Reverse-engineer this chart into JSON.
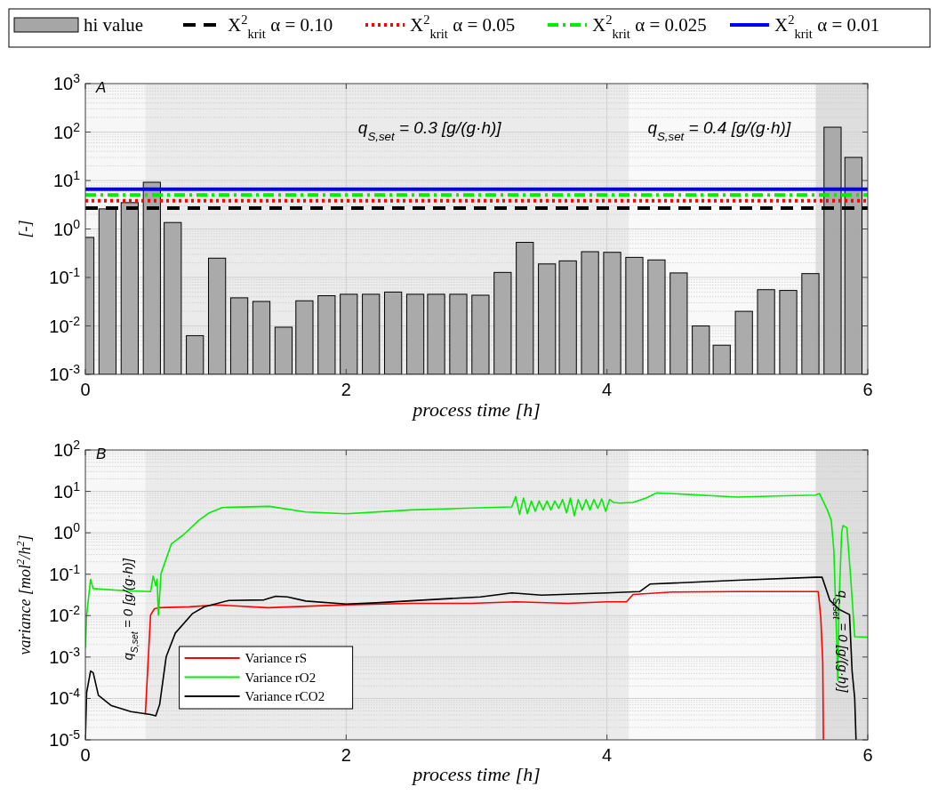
{
  "chart_data": [
    {
      "type": "bar",
      "title": "A",
      "xlabel": "process time [h]",
      "ylabel": "[-]",
      "log": "y",
      "grid": true,
      "legend": "top",
      "x": [
        0,
        0.17,
        0.34,
        0.51,
        0.67,
        0.84,
        1.01,
        1.18,
        1.35,
        1.52,
        1.68,
        1.85,
        2.02,
        2.19,
        2.36,
        2.53,
        2.69,
        2.86,
        3.03,
        3.2,
        3.37,
        3.54,
        3.7,
        3.87,
        4.04,
        4.21,
        4.38,
        4.55,
        4.72,
        4.88,
        5.05,
        5.22,
        5.39,
        5.56,
        5.73,
        5.89
      ],
      "series": [
        {
          "name": "hi value",
          "color": "#a6a6a6",
          "values": [
            0.67,
            2.6,
            3.5,
            9.2,
            1.36,
            0.0063,
            0.25,
            0.038,
            0.032,
            0.0094,
            0.033,
            0.042,
            0.045,
            0.045,
            0.05,
            0.045,
            0.045,
            0.045,
            0.043,
            0.127,
            0.53,
            0.19,
            0.22,
            0.34,
            0.33,
            0.26,
            0.23,
            0.124,
            0.01,
            0.004,
            0.02,
            0.056,
            0.054,
            0.12,
            126,
            30
          ]
        },
        {
          "type": "line",
          "name": "X$^{2}$$_{krit}$ α = 0.10",
          "color": "#000000",
          "line_style": "dashed",
          "x": [
            0,
            6
          ],
          "values": [
            2.71,
            2.71
          ]
        },
        {
          "type": "line",
          "name": "X$^{2}$$_{krit}$ α = 0.05",
          "color": "#ff0000",
          "line_style": "dotted",
          "x": [
            0,
            6
          ],
          "values": [
            3.84,
            3.84
          ]
        },
        {
          "type": "line",
          "name": "X$^{2}$$_{krit}$ α = 0.025",
          "color": "#00ee00",
          "line_style": "dashdot",
          "x": [
            0,
            6
          ],
          "values": [
            5.02,
            5.02
          ]
        },
        {
          "type": "line",
          "name": "X$^{2}$$_{krit}$ α = 0.01",
          "color": "#0000ff",
          "line_style": "solid",
          "x": [
            0,
            6
          ],
          "values": [
            6.63,
            6.63
          ]
        }
      ],
      "xlim": [
        0,
        6
      ],
      "xticks": [
        0,
        2,
        4,
        6
      ],
      "ylim": [
        0.001,
        1000
      ],
      "yticks": [
        {
          "value": 0.001,
          "label": "10$^{-3}$"
        },
        {
          "value": 0.01,
          "label": "10$^{-2}$"
        },
        {
          "value": 0.1,
          "label": "10$^{-1}$"
        },
        {
          "value": 1,
          "label": "10$^{0}$"
        },
        {
          "value": 10,
          "label": "10$^{1}$"
        },
        {
          "value": 100,
          "label": "10$^{2}$"
        },
        {
          "value": 1000,
          "label": "10$^{3}$"
        }
      ],
      "bands": [
        {
          "axis": "x",
          "from": 0,
          "to": 0.46,
          "color": "#f7f7f7"
        },
        {
          "axis": "x",
          "from": 0.46,
          "to": 4.17,
          "color": "#ebebeb"
        },
        {
          "axis": "x",
          "from": 4.17,
          "to": 5.6,
          "color": "#f9f9f9"
        },
        {
          "axis": "x",
          "from": 5.6,
          "to": 6,
          "color": "#dedede"
        }
      ],
      "annotations": [
        "q$_{S,set}$ = 0.3 [g/(g·h)]",
        "q$_{S,set}$ = 0.4 [g/(g·h)]"
      ]
    },
    {
      "type": "line",
      "title": "B",
      "xlabel": "process time [h]",
      "ylabel": "variance [mol$^{2}$/h$^{2}$]",
      "log": "y",
      "grid": true,
      "legend": "bottom left",
      "series": [
        {
          "name": "Variance rS",
          "color": "#ff0000",
          "x": [
            0.46,
            0.5,
            0.53,
            0.56,
            0.8,
            1.0,
            1.4,
            2.0,
            2.5,
            2.96,
            3.3,
            3.7,
            4.0,
            4.15,
            4.2,
            4.5,
            5.0,
            5.6,
            5.62,
            5.64,
            5.655,
            5.66
          ],
          "values": [
            4.1e-05,
            0.0103,
            0.0147,
            0.0155,
            0.0163,
            0.0182,
            0.0155,
            0.0182,
            0.0198,
            0.0198,
            0.0215,
            0.0198,
            0.0215,
            0.0215,
            0.0325,
            0.037,
            0.038,
            0.038,
            0.038,
            0.0087,
            0.00073,
            1e-05
          ]
        },
        {
          "name": "Variance rO2",
          "color": "#00ee00",
          "x": [
            0,
            0.01,
            0.04,
            0.06,
            0.3,
            0.5,
            0.52,
            0.54,
            0.55,
            0.56,
            0.58,
            0.66,
            0.75,
            0.87,
            0.95,
            1.05,
            1.41,
            1.69,
            2.0,
            2.5,
            3.03,
            3.27,
            3.3,
            3.33,
            3.36,
            3.39,
            3.42,
            3.45,
            3.48,
            3.51,
            3.54,
            3.57,
            3.6,
            3.63,
            3.66,
            3.69,
            3.72,
            3.75,
            3.78,
            3.81,
            3.84,
            3.87,
            3.9,
            3.93,
            3.96,
            3.99,
            4.02,
            4.05,
            4.1,
            4.2,
            4.3,
            4.38,
            4.5,
            5.0,
            5.3,
            5.6,
            5.63,
            5.69,
            5.72,
            5.74,
            5.76,
            5.77,
            5.78,
            5.8,
            5.81,
            5.84,
            5.87,
            5.9,
            6.0
          ],
          "values": [
            0.00167,
            0.0103,
            0.075,
            0.045,
            0.04,
            0.038,
            0.09,
            0.053,
            0.076,
            0.0103,
            0.103,
            0.54,
            0.88,
            2.0,
            3.03,
            4.08,
            4.36,
            3.18,
            2.88,
            3.57,
            4.01,
            4.22,
            7.5,
            2.79,
            6.92,
            2.88,
            5.86,
            3.29,
            5.86,
            3.57,
            5.86,
            3.57,
            5.86,
            3.88,
            6.37,
            3.03,
            6.92,
            2.57,
            6.37,
            3.57,
            6.37,
            3.57,
            6.37,
            3.88,
            6.58,
            3.29,
            6.37,
            5.4,
            5.22,
            5.4,
            6.92,
            9.15,
            8.85,
            7.26,
            7.76,
            8.15,
            8.85,
            3.57,
            2.0,
            0.385,
            0.0038,
            0.00027,
            0.0198,
            1.04,
            1.49,
            1.33,
            0.074,
            0.0031,
            0.003
          ]
        },
        {
          "name": "Variance rCO2",
          "color": "#000000",
          "x": [
            0,
            0.01,
            0.04,
            0.06,
            0.1,
            0.2,
            0.35,
            0.5,
            0.54,
            0.57,
            0.62,
            0.69,
            0.82,
            0.91,
            1.1,
            1.37,
            1.46,
            1.55,
            1.69,
            2.0,
            2.23,
            3.03,
            3.27,
            3.5,
            4.0,
            4.25,
            4.33,
            5.0,
            5.6,
            5.65,
            5.71,
            5.78,
            5.86,
            5.88,
            5.9,
            5.91
          ],
          "values": [
            1e-05,
            0.00014,
            0.00046,
            0.00042,
            0.000119,
            6.7e-05,
            4.8e-05,
            4.1e-05,
            3.8e-05,
            7.2e-05,
            0.00102,
            0.0038,
            0.0111,
            0.0162,
            0.0233,
            0.024,
            0.0294,
            0.0284,
            0.0225,
            0.0191,
            0.0204,
            0.0284,
            0.0354,
            0.0313,
            0.0354,
            0.038,
            0.0578,
            0.0716,
            0.0845,
            0.0845,
            0.0233,
            0.0142,
            0.0106,
            0.00045,
            0.0001,
            1e-05
          ]
        }
      ],
      "xlim": [
        0,
        6
      ],
      "xticks": [
        0,
        2,
        4,
        6
      ],
      "ylim": [
        1e-05,
        100
      ],
      "yticks": [
        {
          "value": 1e-05,
          "label": "10$^{-5}$"
        },
        {
          "value": 0.0001,
          "label": "10$^{-4}$"
        },
        {
          "value": 0.001,
          "label": "10$^{-3}$"
        },
        {
          "value": 0.01,
          "label": "10$^{-2}$"
        },
        {
          "value": 0.1,
          "label": "10$^{-1}$"
        },
        {
          "value": 1,
          "label": "10$^{0}$"
        },
        {
          "value": 10,
          "label": "10$^{1}$"
        },
        {
          "value": 100,
          "label": "10$^{2}$"
        }
      ],
      "bands": [
        {
          "axis": "x",
          "from": 0,
          "to": 0.46,
          "color": "#f7f7f7"
        },
        {
          "axis": "x",
          "from": 0.46,
          "to": 4.17,
          "color": "#ebebeb"
        },
        {
          "axis": "x",
          "from": 4.17,
          "to": 5.6,
          "color": "#f9f9f9"
        },
        {
          "axis": "x",
          "from": 5.6,
          "to": 6,
          "color": "#dedede"
        }
      ],
      "annotations": [
        "q$_{S,set}$ = 0 [g/(g·h)]",
        "q$_{S,set}$ = 0 [g/(g·h)]"
      ]
    }
  ]
}
